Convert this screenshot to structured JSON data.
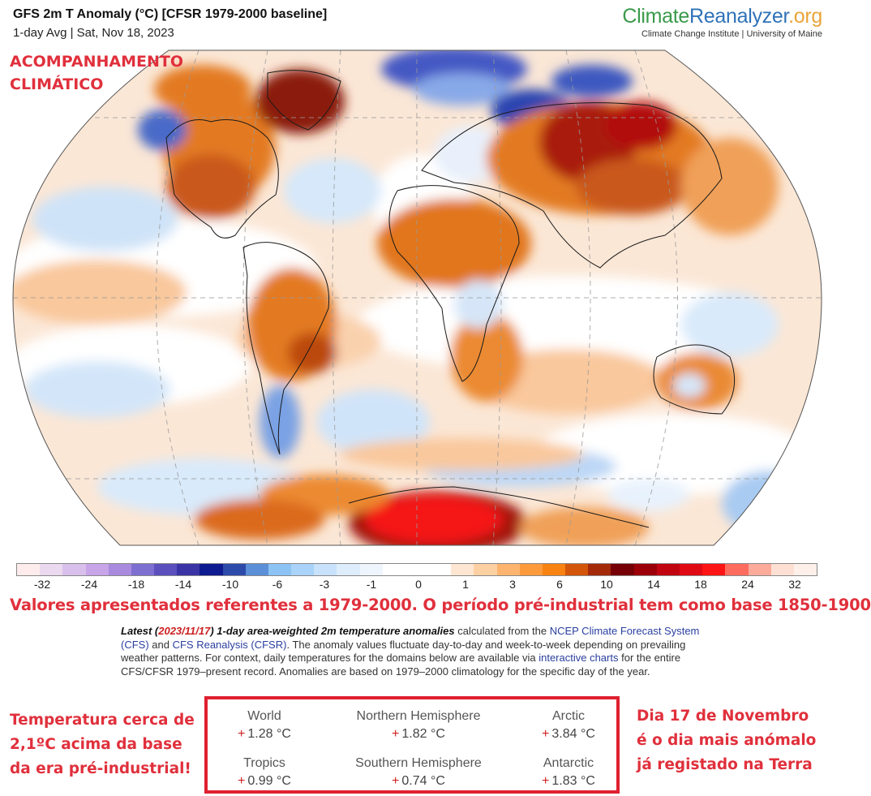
{
  "header": {
    "title": "GFS 2m T Anomaly (°C) [CFSR 1979-2000 baseline]",
    "subtitle": "1-day Avg | Sat, Nov 18, 2023"
  },
  "brand": {
    "part1": "Climate",
    "part2": "Reanalyzer",
    "part3": ".org",
    "tagline": "Climate Change Institute | University of Maine",
    "colors": {
      "climate": "#3a9a4a",
      "reanalyzer": "#2f72b8",
      "org": "#e9a43a"
    }
  },
  "overlay": {
    "tag_line1": "ACOMPANHAMENTO",
    "tag_line2": "CLIMÁTICO",
    "note": "Valores apresentados referentes a 1979-2000. O período pré-industrial tem como base 1850-1900",
    "left_line1": "Temperatura cerca de",
    "left_line2": "2,1ºC acima da base",
    "left_line3": "da era pré-industrial!",
    "right_line1": "Dia 17 de Novembro",
    "right_line2": "é o dia mais anómalo",
    "right_line3": "já registado na Terra",
    "accent_color": "#e0303c"
  },
  "map": {
    "projection": "Robinson (world, oval)",
    "description": "Global 2m temperature anomaly map; strong warm anomalies over North America, Greenland, Siberia/Central Asia, Africa, South America and Antarctica (Weddell sector); cold anomalies over Scandinavia/N Russia, Arctic Ocean, southern South America."
  },
  "colorbar": {
    "tick_labels": [
      "-32",
      "-24",
      "-18",
      "-14",
      "-10",
      "-6",
      "-3",
      "-1",
      "0",
      "1",
      "3",
      "6",
      "10",
      "14",
      "18",
      "24",
      "32"
    ],
    "colors": [
      "#fdeceb",
      "#ead9ef",
      "#d9c0ec",
      "#c7a5e8",
      "#a98adf",
      "#7d6fd1",
      "#5b4fbd",
      "#3a33a5",
      "#0e1a8f",
      "#2c4aaa",
      "#5b8fd8",
      "#8cc3f4",
      "#a9d3f8",
      "#c7e2fa",
      "#deedfb",
      "#eef5fd",
      "#ffffff",
      "#ffffff",
      "#ffffff",
      "#fde6d2",
      "#fdd0a4",
      "#fdb46e",
      "#fd9a3c",
      "#f88212",
      "#d3560a",
      "#a32b0a",
      "#760006",
      "#9b0009",
      "#c00510",
      "#df0a14",
      "#fe1414",
      "#fd6c5f",
      "#fcaa9a",
      "#fde0d3",
      "#fdf0ea"
    ]
  },
  "description": {
    "lead": "Latest (",
    "date": "2023/11/17",
    "lead2": ") 1-day area-weighted 2m temperature anomalies",
    "text1": " calculated from the ",
    "link1": "NCEP Climate Forecast System (CFS)",
    "text2": " and ",
    "link2": "CFS Reanalysis (CFSR)",
    "text3": ". The anomaly values fluctuate day-to-day and week-to-week depending on prevailing weather patterns. For context, daily temperatures for the domains below are available via ",
    "link3": "interactive charts",
    "text4": " for the entire CFS/CFSR 1979–present record. Anomalies are based on 1979–2000 climatology for the specific day of the year."
  },
  "stats": [
    {
      "label": "World",
      "sign": "+",
      "value": "1.28 °C"
    },
    {
      "label": "Northern Hemisphere",
      "sign": "+",
      "value": "1.82 °C"
    },
    {
      "label": "Arctic",
      "sign": "+",
      "value": "3.84 °C"
    },
    {
      "label": "Tropics",
      "sign": "+",
      "value": "0.99 °C"
    },
    {
      "label": "Southern Hemisphere",
      "sign": "+",
      "value": "0.74 °C"
    },
    {
      "label": "Antarctic",
      "sign": "+",
      "value": "1.83 °C"
    }
  ]
}
